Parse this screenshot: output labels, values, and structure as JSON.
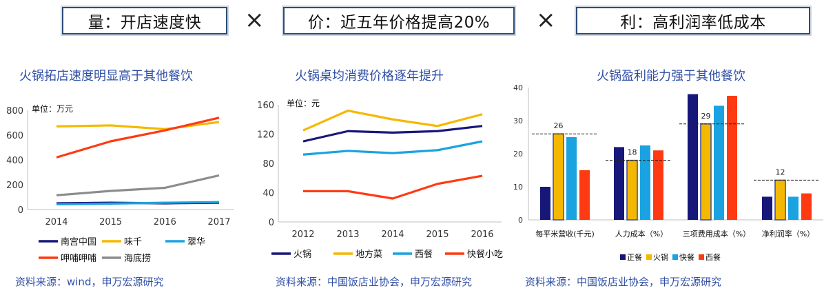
{
  "header": {
    "box1": "量：开店速度快",
    "box2": "价：近五年价格提高20%",
    "box3": "利：高利润率低成本",
    "times1": "×",
    "times2": "×"
  },
  "chart_data": [
    {
      "type": "line",
      "title": "火锅拓店速度明显高于其他餐饮",
      "unit_label": "单位：万元",
      "categories": [
        "2014",
        "2015",
        "2016",
        "2017"
      ],
      "ylim": [
        0,
        800
      ],
      "yticks": [
        "0",
        "200",
        "400",
        "600",
        "800"
      ],
      "series": [
        {
          "name": "南宫中国",
          "values": [
            50,
            55,
            50,
            55
          ],
          "color": "#17177a"
        },
        {
          "name": "味千",
          "values": [
            670,
            678,
            648,
            705
          ],
          "color": "#f5b800"
        },
        {
          "name": "翠华",
          "values": [
            42,
            48,
            55,
            60
          ],
          "color": "#1aa3e0"
        },
        {
          "name": "呷哺呷哺",
          "values": [
            420,
            550,
            638,
            740
          ],
          "color": "#ff3a12"
        },
        {
          "name": "海底捞",
          "values": [
            115,
            150,
            175,
            275
          ],
          "color": "#8c8c8c"
        }
      ],
      "source": "资料来源：wind，申万宏源研究"
    },
    {
      "type": "line",
      "title": "火锅桌均消费价格逐年提升",
      "unit_label": "单位：元",
      "categories": [
        "2012",
        "2013",
        "2014",
        "2015",
        "2016"
      ],
      "ylim": [
        0,
        160
      ],
      "yticks": [
        "0",
        "40",
        "80",
        "120",
        "160"
      ],
      "series": [
        {
          "name": "火锅",
          "values": [
            110,
            124,
            122,
            124,
            131
          ],
          "color": "#17177a"
        },
        {
          "name": "地方菜",
          "values": [
            125,
            152,
            140,
            131,
            147
          ],
          "color": "#f5b800"
        },
        {
          "name": "西餐",
          "values": [
            92,
            97,
            94,
            98,
            110
          ],
          "color": "#1aa3e0"
        },
        {
          "name": "快餐小吃",
          "values": [
            42,
            42,
            32,
            52,
            63
          ],
          "color": "#ff3a12"
        }
      ],
      "source": "资料来源：中国饭店业协会，申万宏源研究"
    },
    {
      "type": "bar",
      "title": "火锅盈利能力强于其他餐饮",
      "categories": [
        "每平米营收(千元)",
        "人力成本（%）",
        "三项费用成本（%）",
        "净利润率（%）"
      ],
      "ylim": [
        0,
        40
      ],
      "yticks": [
        "0",
        "10",
        "20",
        "30",
        "40"
      ],
      "series": [
        {
          "name": "正餐",
          "values": [
            10,
            22,
            38,
            7
          ],
          "color": "#17177a"
        },
        {
          "name": "火锅",
          "values": [
            26,
            18,
            29,
            12
          ],
          "color": "#f5b800"
        },
        {
          "name": "快餐",
          "values": [
            25,
            22.5,
            34.5,
            7
          ],
          "color": "#1aa3e0"
        },
        {
          "name": "西餐",
          "values": [
            15,
            21,
            37.5,
            8
          ],
          "color": "#ff3a12"
        }
      ],
      "data_labels": [
        "26",
        "18",
        "29",
        "12"
      ],
      "source": "资料来源：中国饭店业协会，申万宏源研究"
    }
  ]
}
